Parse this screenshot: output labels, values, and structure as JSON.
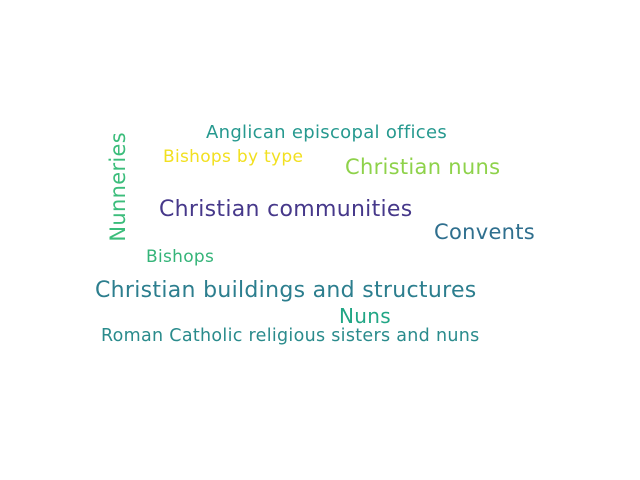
{
  "words": [
    {
      "text": "Anglican episcopal offices",
      "color": "#26998f"
    },
    {
      "text": "Nunneries",
      "color": "#3bbd7b"
    },
    {
      "text": "Bishops by type",
      "color": "#f2e020"
    },
    {
      "text": "Christian nuns",
      "color": "#8ed24a"
    },
    {
      "text": "Christian communities",
      "color": "#46388a"
    },
    {
      "text": "Convents",
      "color": "#2f6f8e"
    },
    {
      "text": "Bishops",
      "color": "#35b479"
    },
    {
      "text": "Christian buildings and structures",
      "color": "#2c7e8e"
    },
    {
      "text": "Nuns",
      "color": "#21a685"
    },
    {
      "text": "Roman Catholic religious sisters and nuns",
      "color": "#2a8b8c"
    }
  ]
}
